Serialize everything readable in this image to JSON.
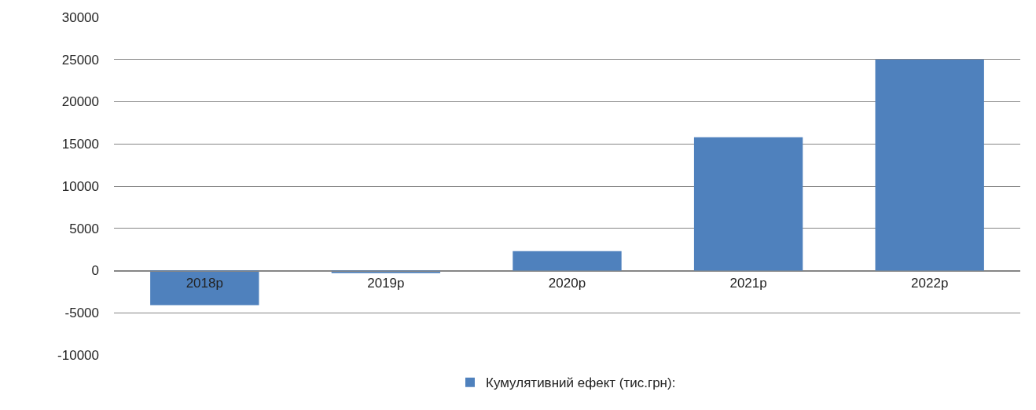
{
  "chart_data": {
    "type": "bar",
    "categories": [
      "2018р",
      "2019р",
      "2020р",
      "2021р",
      "2022р"
    ],
    "series": [
      {
        "name": "Кумулятивний ефект (тис.грн):",
        "color": "#4f81bd",
        "values": [
          -4100,
          -300,
          2300,
          15800,
          25000
        ]
      }
    ],
    "ylim": [
      -10000,
      30000
    ],
    "yticks": [
      -10000,
      -5000,
      0,
      5000,
      10000,
      15000,
      20000,
      25000,
      30000
    ],
    "grid": "y",
    "legend": "bottom"
  }
}
